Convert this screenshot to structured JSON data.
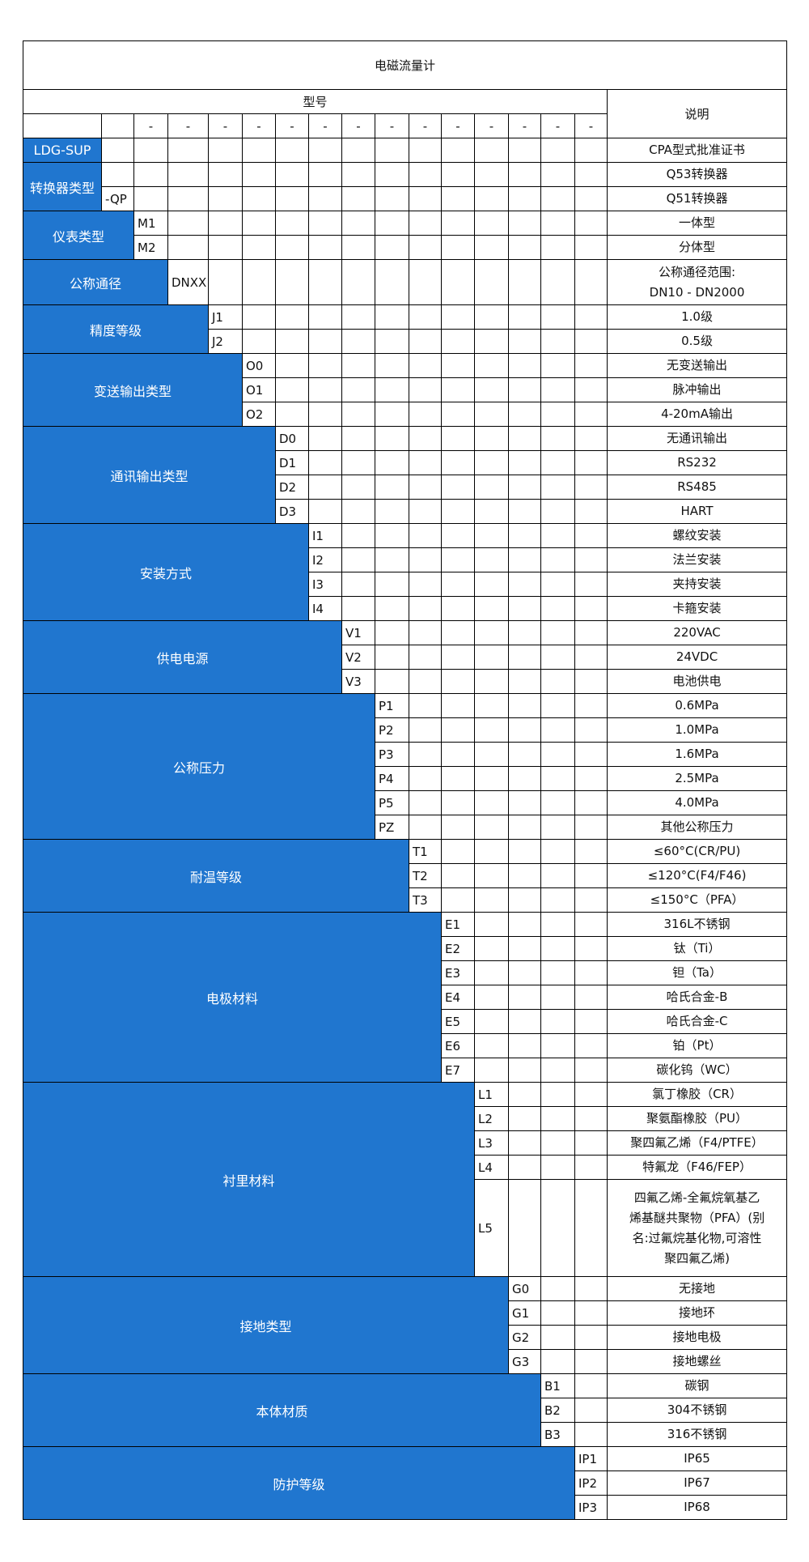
{
  "title": "电磁流量计",
  "header": {
    "model_label": "型号",
    "desc_label": "说明",
    "separator": "-"
  },
  "colors": {
    "label_bg": "#2076cf",
    "label_text": "#ffffff",
    "border": "#000000"
  },
  "groups": [
    {
      "label": "LDG-SUP",
      "span": 1,
      "rows": [
        {
          "code": "",
          "desc": [
            "CPA型式批准证书"
          ]
        }
      ]
    },
    {
      "label": "转换器类型",
      "span": 1,
      "rows": [
        {
          "code": "",
          "desc": [
            "Q53转换器"
          ]
        },
        {
          "code": "-QP",
          "desc": [
            "Q51转换器"
          ]
        }
      ]
    },
    {
      "label": "仪表类型",
      "span": 2,
      "rows": [
        {
          "code": "M1",
          "desc": [
            "一体型"
          ]
        },
        {
          "code": "M2",
          "desc": [
            "分体型"
          ]
        }
      ]
    },
    {
      "label": "公称通径",
      "span": 3,
      "rows": [
        {
          "code": "DNXX",
          "desc": [
            "公称通径范围:",
            "DN10 - DN2000"
          ]
        }
      ]
    },
    {
      "label": "精度等级",
      "span": 4,
      "rows": [
        {
          "code": "J1",
          "desc": [
            "1.0级"
          ]
        },
        {
          "code": "J2",
          "desc": [
            "0.5级"
          ]
        }
      ]
    },
    {
      "label": "变送输出类型",
      "span": 5,
      "rows": [
        {
          "code": "O0",
          "desc": [
            "无变送输出"
          ]
        },
        {
          "code": "O1",
          "desc": [
            "脉冲输出"
          ]
        },
        {
          "code": "O2",
          "desc": [
            "4-20mA输出"
          ]
        }
      ]
    },
    {
      "label": "通讯输出类型",
      "span": 6,
      "rows": [
        {
          "code": "D0",
          "desc": [
            "无通讯输出"
          ]
        },
        {
          "code": "D1",
          "desc": [
            "RS232"
          ]
        },
        {
          "code": "D2",
          "desc": [
            "RS485"
          ]
        },
        {
          "code": "D3",
          "desc": [
            "HART"
          ]
        }
      ]
    },
    {
      "label": "安装方式",
      "span": 7,
      "rows": [
        {
          "code": "I1",
          "desc": [
            "螺纹安装"
          ]
        },
        {
          "code": "I2",
          "desc": [
            "法兰安装"
          ]
        },
        {
          "code": "I3",
          "desc": [
            "夹持安装"
          ]
        },
        {
          "code": "I4",
          "desc": [
            "卡箍安装"
          ]
        }
      ]
    },
    {
      "label": "供电电源",
      "span": 8,
      "rows": [
        {
          "code": "V1",
          "desc": [
            "220VAC"
          ]
        },
        {
          "code": "V2",
          "desc": [
            "24VDC"
          ]
        },
        {
          "code": "V3",
          "desc": [
            "电池供电"
          ]
        }
      ]
    },
    {
      "label": "公称压力",
      "span": 9,
      "rows": [
        {
          "code": "P1",
          "desc": [
            "0.6MPa"
          ]
        },
        {
          "code": "P2",
          "desc": [
            "1.0MPa"
          ]
        },
        {
          "code": "P3",
          "desc": [
            "1.6MPa"
          ]
        },
        {
          "code": "P4",
          "desc": [
            "2.5MPa"
          ]
        },
        {
          "code": "P5",
          "desc": [
            "4.0MPa"
          ]
        },
        {
          "code": "PZ",
          "desc": [
            "其他公称压力"
          ]
        }
      ]
    },
    {
      "label": "耐温等级",
      "span": 10,
      "rows": [
        {
          "code": "T1",
          "desc": [
            "≤60°C(CR/PU)"
          ]
        },
        {
          "code": "T2",
          "desc": [
            "≤120°C(F4/F46)"
          ]
        },
        {
          "code": "T3",
          "desc": [
            "≤150°C（PFA）"
          ]
        }
      ]
    },
    {
      "label": "电极材料",
      "span": 11,
      "rows": [
        {
          "code": "E1",
          "desc": [
            "316L不锈钢"
          ]
        },
        {
          "code": "E2",
          "desc": [
            "钛（Ti）"
          ]
        },
        {
          "code": "E3",
          "desc": [
            "钽（Ta）"
          ]
        },
        {
          "code": "E4",
          "desc": [
            "哈氏合金-B"
          ]
        },
        {
          "code": "E5",
          "desc": [
            "哈氏合金-C"
          ]
        },
        {
          "code": "E6",
          "desc": [
            "铂（Pt）"
          ]
        },
        {
          "code": "E7",
          "desc": [
            "碳化钨（WC）"
          ]
        }
      ]
    },
    {
      "label": "衬里材料",
      "span": 12,
      "rows": [
        {
          "code": "L1",
          "desc": [
            "氯丁橡胶（CR）"
          ]
        },
        {
          "code": "L2",
          "desc": [
            "聚氨酯橡胶（PU）"
          ]
        },
        {
          "code": "L3",
          "desc": [
            "聚四氟乙烯（F4/PTFE）"
          ]
        },
        {
          "code": "L4",
          "desc": [
            "特氟龙（F46/FEP）"
          ]
        },
        {
          "code": "L5",
          "desc": [
            "四氟乙烯-全氟烷氧基乙",
            "烯基醚共聚物（PFA）(别",
            "名:过氟烷基化物,可溶性",
            "聚四氟乙烯)"
          ]
        }
      ]
    },
    {
      "label": "接地类型",
      "span": 13,
      "rows": [
        {
          "code": "G0",
          "desc": [
            "无接地"
          ]
        },
        {
          "code": "G1",
          "desc": [
            "接地环"
          ]
        },
        {
          "code": "G2",
          "desc": [
            "接地电极"
          ]
        },
        {
          "code": "G3",
          "desc": [
            "接地螺丝"
          ]
        }
      ]
    },
    {
      "label": "本体材质",
      "span": 14,
      "rows": [
        {
          "code": "B1",
          "desc": [
            "碳钢"
          ]
        },
        {
          "code": "B2",
          "desc": [
            "304不锈钢"
          ]
        },
        {
          "code": "B3",
          "desc": [
            "316不锈钢"
          ]
        }
      ]
    },
    {
      "label": "防护等级",
      "span": 15,
      "rows": [
        {
          "code": "IP1",
          "desc": [
            "IP65"
          ]
        },
        {
          "code": "IP2",
          "desc": [
            "IP67"
          ]
        },
        {
          "code": "IP3",
          "desc": [
            "IP68"
          ]
        }
      ]
    }
  ]
}
